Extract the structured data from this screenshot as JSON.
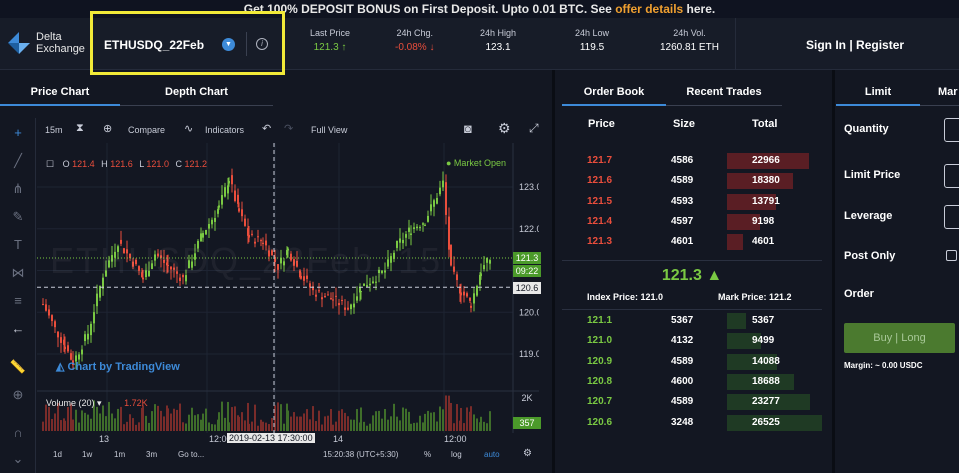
{
  "banner": {
    "text_before": "Get 100% DEPOSIT BONUS on First Deposit. Upto 0.01 BTC. See ",
    "link": "offer details",
    "text_after": " here."
  },
  "logo": {
    "line1": "Delta",
    "line2": "Exchange"
  },
  "symbol": "ETHUSDQ_22Feb",
  "stats": [
    {
      "label": "Last Price",
      "value": "121.3 ↑",
      "color": "#7ac943"
    },
    {
      "label": "24h Chg.",
      "value": "-0.08% ↓",
      "color": "#ea4e3c"
    },
    {
      "label": "24h High",
      "value": "123.1",
      "color": "#ffffff"
    },
    {
      "label": "24h Low",
      "value": "119.5",
      "color": "#ffffff"
    },
    {
      "label": "24h Vol.",
      "value": "1260.81 ETH",
      "color": "#ffffff"
    }
  ],
  "auth": {
    "signin": "Sign In",
    "sep": "|",
    "register": "Register"
  },
  "chart_tabs": {
    "price": "Price Chart",
    "depth": "Depth Chart"
  },
  "toolbar": {
    "interval": "15m",
    "compare": "Compare",
    "indicators": "Indicators",
    "fullview": "Full View"
  },
  "ohlc": {
    "o_label": "O",
    "o": "121.4",
    "h_label": "H",
    "h": "121.6",
    "l_label": "L",
    "l": "121.0",
    "c_label": "C",
    "c": "121.2"
  },
  "market_status": "● Market Open",
  "watermark": "ETHUSDQ_22Feb, 15",
  "tv_badge": "Chart by TradingView",
  "volume": {
    "label": "Volume (20)",
    "value": "1.72K"
  },
  "price_axis": [
    "123.0",
    "122.0",
    "121.0",
    "120.0",
    "119.0"
  ],
  "price_tags": {
    "last": "121.3",
    "time": "09:22",
    "cross": "120.6",
    "vol_axis": "2K",
    "vol_last": "357"
  },
  "time_axis": {
    "t1": "13",
    "t2": "12:00",
    "crosshair": "2019-02-13 17:30:00",
    "t3": "14",
    "t4": "12:00"
  },
  "bottom_bar": {
    "d1": "1d",
    "w1": "1w",
    "m1": "1m",
    "m3": "3m",
    "goto": "Go to...",
    "clock": "15:20:38 (UTC+5:30)",
    "pct": "%",
    "log": "log",
    "auto": "auto"
  },
  "orderbook": {
    "tab1": "Order Book",
    "tab2": "Recent Trades",
    "headers": {
      "price": "Price",
      "size": "Size",
      "total": "Total"
    },
    "asks": [
      {
        "price": "121.7",
        "size": "4586",
        "total": "22966"
      },
      {
        "price": "121.6",
        "size": "4589",
        "total": "18380"
      },
      {
        "price": "121.5",
        "size": "4593",
        "total": "13791"
      },
      {
        "price": "121.4",
        "size": "4597",
        "total": "9198"
      },
      {
        "price": "121.3",
        "size": "4601",
        "total": "4601"
      }
    ],
    "mid_price": "121.3 ▲",
    "index_price": "Index Price: 121.0",
    "mark_price": "Mark Price: 121.2",
    "bids": [
      {
        "price": "121.1",
        "size": "5367",
        "total": "5367"
      },
      {
        "price": "121.0",
        "size": "4132",
        "total": "9499"
      },
      {
        "price": "120.9",
        "size": "4589",
        "total": "14088"
      },
      {
        "price": "120.8",
        "size": "4600",
        "total": "18688"
      },
      {
        "price": "120.7",
        "size": "4589",
        "total": "23277"
      },
      {
        "price": "120.6",
        "size": "3248",
        "total": "26525"
      }
    ]
  },
  "order_form": {
    "tab_limit": "Limit",
    "tab_market": "Mar",
    "quantity": "Quantity",
    "limit_price": "Limit Price",
    "leverage": "Leverage",
    "post_only": "Post Only",
    "order": "Order",
    "buy": "Buy | Long",
    "margin": "Margin: ~ 0.00 USDC"
  },
  "colors": {
    "up": "#7ac943",
    "down": "#ea4e3c",
    "accent": "#3d8ad8",
    "highlight": "#f2ea38"
  }
}
